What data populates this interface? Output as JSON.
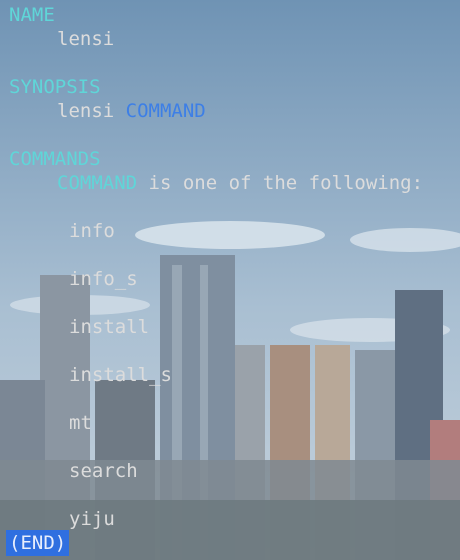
{
  "colors": {
    "heading": "#5fd6d8",
    "text": "#dcdcdc",
    "command_highlight": "#3d7fe6",
    "end_bg": "#2f6fe0",
    "sky_top": "#7da0bf",
    "sky_bottom": "#c9d6e0"
  },
  "manpage": {
    "name_heading": "NAME",
    "name_value": "lensi",
    "synopsis_heading": "SYNOPSIS",
    "synopsis_cmd": "lensi",
    "synopsis_arg": "COMMAND",
    "commands_heading": "COMMANDS",
    "commands_intro_arg": "COMMAND",
    "commands_intro_text": " is one of the following:",
    "commands": [
      "info",
      "info_s",
      "install",
      "install_s",
      "mt",
      "search",
      "yiju"
    ]
  },
  "pager": {
    "end_marker": "(END)"
  }
}
